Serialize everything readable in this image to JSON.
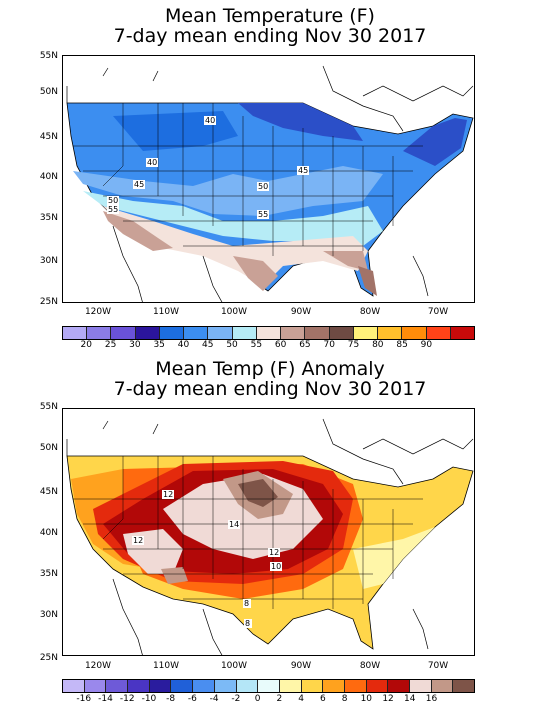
{
  "panels": [
    {
      "title_line1": "Mean Temperature (F)",
      "title_line2": "7-day mean ending Nov 30 2017",
      "lat_labels": [
        "55N",
        "50N",
        "45N",
        "40N",
        "35N",
        "30N",
        "25N"
      ],
      "lon_labels": [
        "120W",
        "110W",
        "100W",
        "90W",
        "80W",
        "70W"
      ],
      "contour_labels": [
        "40",
        "40",
        "45",
        "45",
        "50",
        "50",
        "55",
        "55"
      ],
      "colorbar_colors": [
        "#b4aaf5",
        "#8b7ce6",
        "#6a52d8",
        "#2b159c",
        "#1d6ee0",
        "#3c8ef0",
        "#7ab4f5",
        "#b6ecf6",
        "#f4e3dc",
        "#c9a196",
        "#a27368",
        "#6e4a43",
        "#fff17a",
        "#ffc02c",
        "#ff8c0a",
        "#ff4318",
        "#c80a0a"
      ],
      "colorbar_labels": [
        "20",
        "25",
        "30",
        "35",
        "40",
        "45",
        "50",
        "55",
        "60",
        "65",
        "70",
        "75",
        "80",
        "85",
        "90"
      ]
    },
    {
      "title_line1": "Mean Temp (F) Anomaly",
      "title_line2": "7-day mean ending Nov 30 2017",
      "lat_labels": [
        "55N",
        "50N",
        "45N",
        "40N",
        "35N",
        "30N",
        "25N"
      ],
      "lon_labels": [
        "120W",
        "110W",
        "100W",
        "90W",
        "80W",
        "70W"
      ],
      "contour_labels": [
        "12",
        "14",
        "12",
        "12",
        "10",
        "8",
        "8"
      ],
      "colorbar_colors": [
        "#c4b8f7",
        "#9a88ec",
        "#6e5ad8",
        "#4a35c4",
        "#2a1c9e",
        "#2060d8",
        "#4a8ef0",
        "#7cbaf6",
        "#b4e6f7",
        "#e8fbfb",
        "#fff6a8",
        "#ffd64a",
        "#ffa21e",
        "#ff6a0f",
        "#e42a0d",
        "#b20808",
        "#f0dad6",
        "#c29888",
        "#7e5448"
      ],
      "colorbar_labels": [
        "-16",
        "-14",
        "-12",
        "-10",
        "-8",
        "-6",
        "-4",
        "-2",
        "0",
        "2",
        "4",
        "6",
        "8",
        "10",
        "12",
        "14",
        "16"
      ]
    }
  ]
}
